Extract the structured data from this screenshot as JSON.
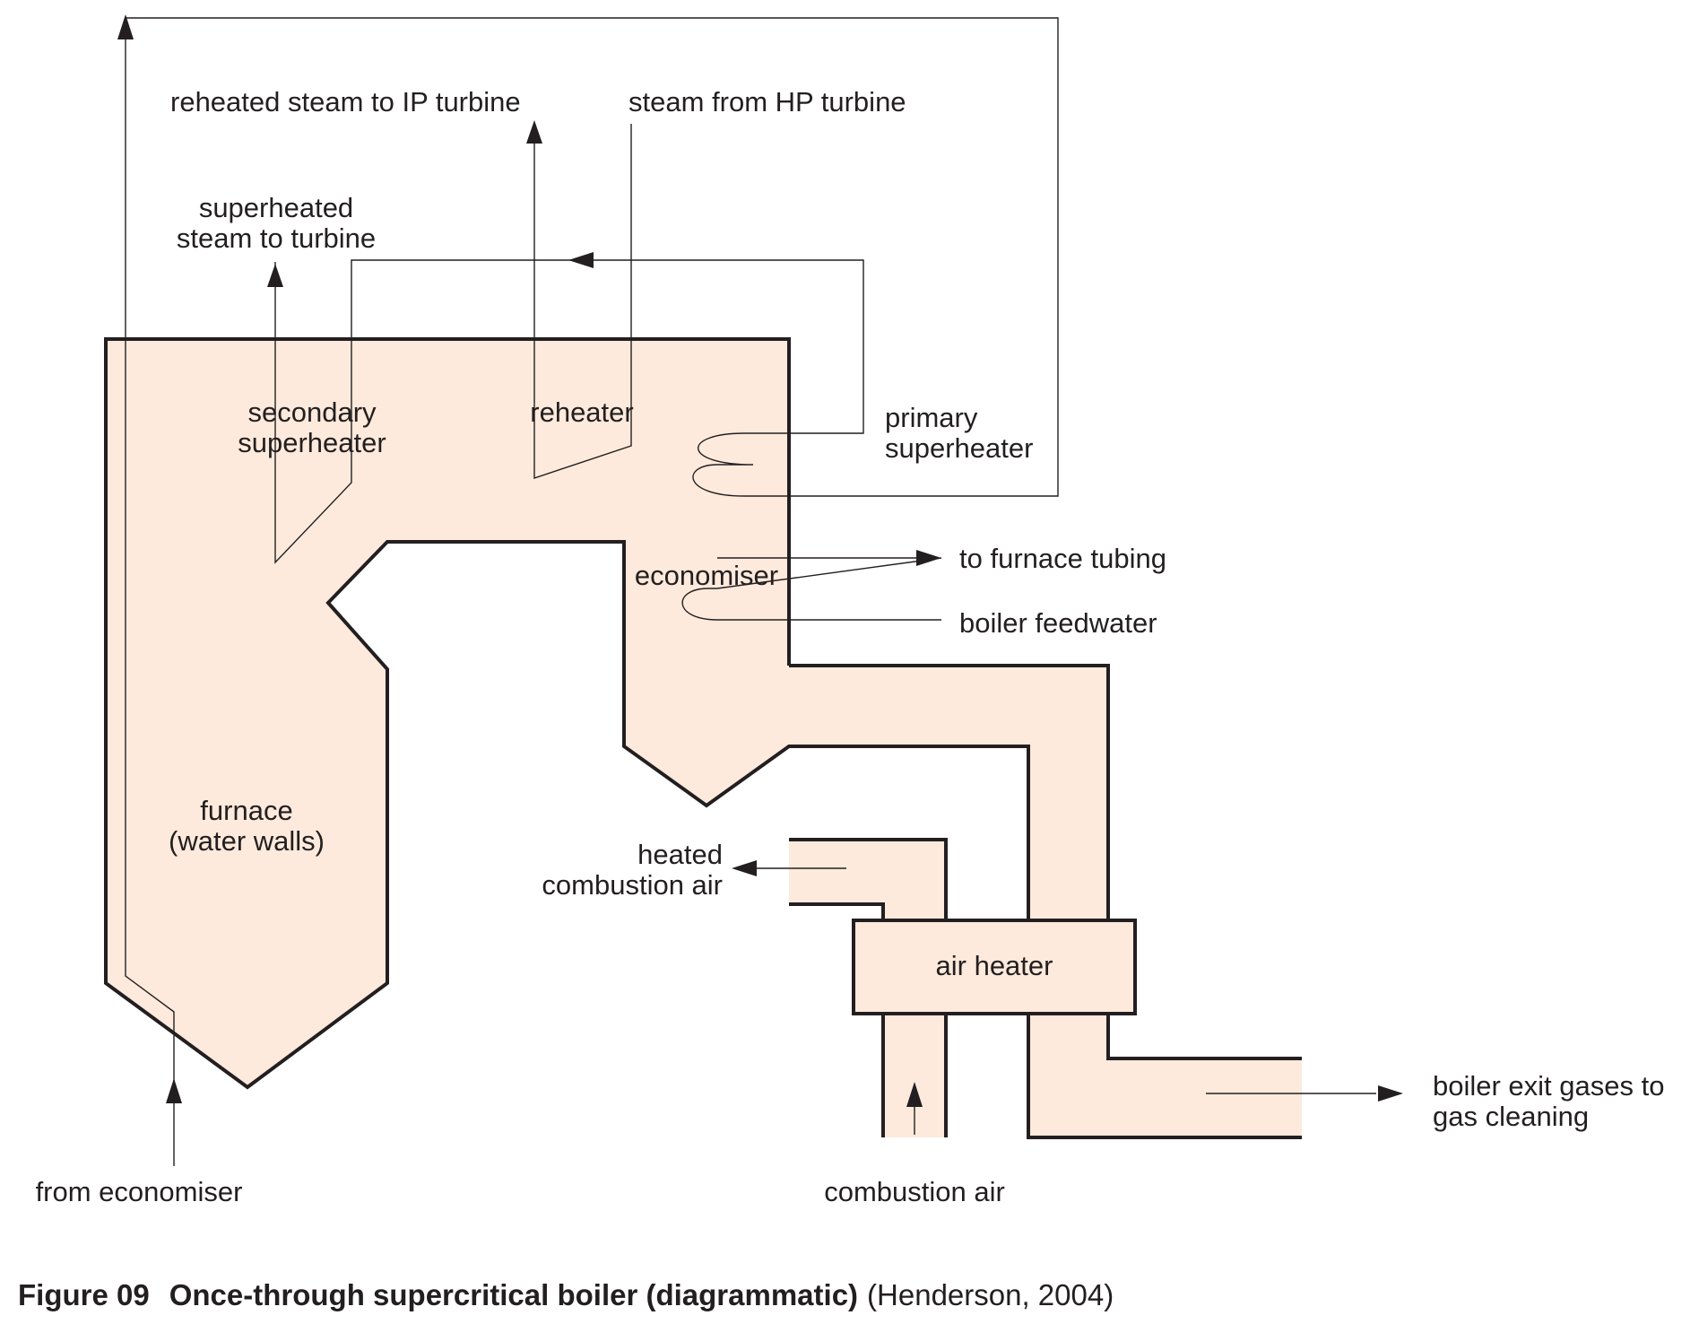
{
  "labels": {
    "reheated_steam": "reheated steam to IP turbine",
    "steam_from_hp": "steam from HP turbine",
    "superheated_line1": "superheated",
    "superheated_line2": "steam to turbine",
    "secondary_line1": "secondary",
    "secondary_line2": "superheater",
    "reheater": "reheater",
    "primary_line1": "primary",
    "primary_line2": "superheater",
    "economiser": "economiser",
    "to_furnace_tubing": "to furnace tubing",
    "boiler_feedwater": "boiler feedwater",
    "furnace_line1": "furnace",
    "furnace_line2": "(water walls)",
    "heated_air_line1": "heated",
    "heated_air_line2": "combustion air",
    "air_heater": "air heater",
    "exit_gases_line1": "boiler exit gases to",
    "exit_gases_line2": "gas cleaning",
    "from_economiser": "from economiser",
    "combustion_air": "combustion air"
  },
  "caption": {
    "figure_number": "Figure 09",
    "title": "Once-through supercritical boiler (diagrammatic)",
    "source": "(Henderson, 2004)"
  },
  "colors": {
    "boiler_fill": "#fdeadc",
    "line": "#231f20"
  }
}
